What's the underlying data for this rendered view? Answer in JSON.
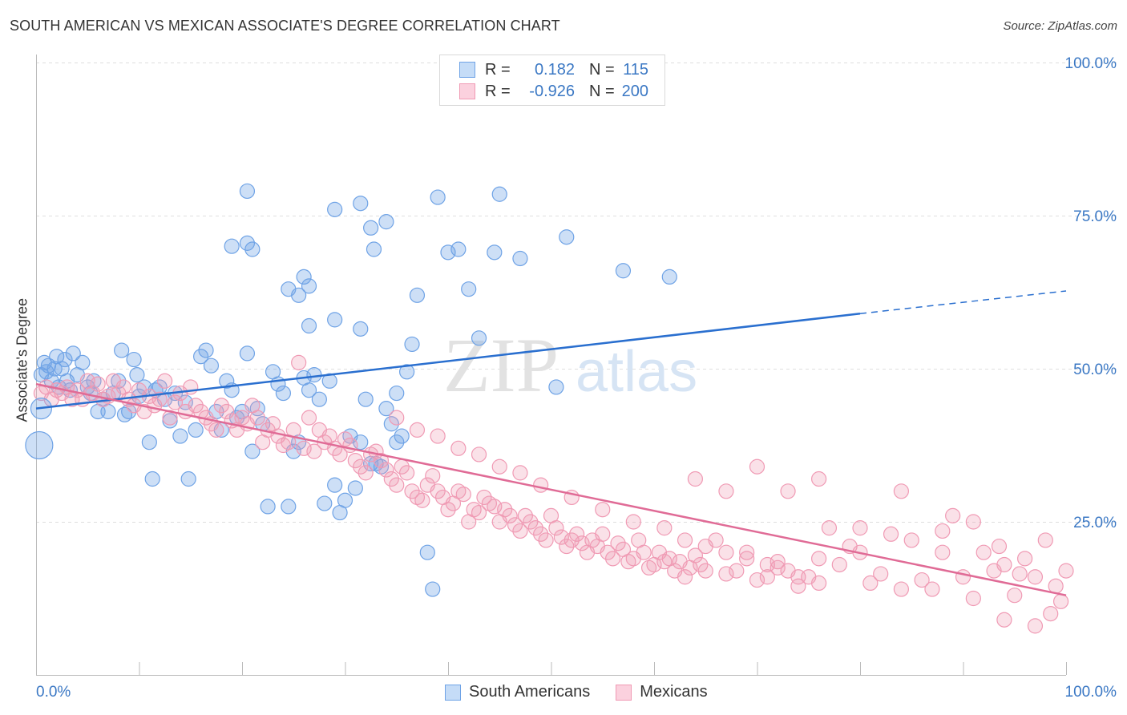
{
  "title": "SOUTH AMERICAN VS MEXICAN ASSOCIATE'S DEGREE CORRELATION CHART",
  "source": "Source: ZipAtlas.com",
  "watermark": {
    "zip": "ZIP",
    "atlas": "atlas"
  },
  "legend": {
    "rows": [
      {
        "r_label": "R =",
        "r_value": "0.182",
        "n_label": "N =",
        "n_value": "115",
        "color": "#6fa3e6"
      },
      {
        "r_label": "R =",
        "r_value": "-0.926",
        "n_label": "N =",
        "n_value": "200",
        "color": "#f09ab4"
      }
    ]
  },
  "bottom_legend": [
    {
      "label": "South Americans",
      "color": "#6fa3e6"
    },
    {
      "label": "Mexicans",
      "color": "#f09ab4"
    }
  ],
  "chart_data": {
    "type": "scatter",
    "title": "SOUTH AMERICAN VS MEXICAN ASSOCIATE'S DEGREE CORRELATION CHART",
    "xlabel": "",
    "ylabel": "Associate's Degree",
    "xlim": [
      0,
      100
    ],
    "ylim": [
      0,
      100
    ],
    "x_tick_labels": [
      "0.0%",
      "100.0%"
    ],
    "y_tick_labels": [
      "25.0%",
      "50.0%",
      "75.0%",
      "100.0%"
    ],
    "y_ticks": [
      25,
      50,
      75,
      100
    ],
    "grid": true,
    "series": [
      {
        "name": "South Americans",
        "color": "#6fa3e6",
        "line_color": "#2a6fcf",
        "trend": {
          "x0": 0,
          "y0": 43.5,
          "x1": 80,
          "y1": 59,
          "dash_to_x": 100,
          "dash_to_y": 62.7
        },
        "points": [
          [
            0.5,
            49
          ],
          [
            0.8,
            51
          ],
          [
            1,
            49.5
          ],
          [
            1.2,
            50.5
          ],
          [
            1.5,
            48
          ],
          [
            1.8,
            50
          ],
          [
            2,
            52
          ],
          [
            2.2,
            47
          ],
          [
            2.5,
            50
          ],
          [
            2.8,
            51.5
          ],
          [
            3,
            48
          ],
          [
            3.3,
            46.5
          ],
          [
            3.6,
            52.5
          ],
          [
            4,
            49
          ],
          [
            4.5,
            51
          ],
          [
            5,
            47
          ],
          [
            5.3,
            46
          ],
          [
            5.6,
            48
          ],
          [
            6,
            43
          ],
          [
            6.5,
            45
          ],
          [
            7,
            43
          ],
          [
            7.5,
            46
          ],
          [
            8,
            48
          ],
          [
            8.3,
            53
          ],
          [
            8.6,
            42.5
          ],
          [
            9,
            43
          ],
          [
            9.5,
            51.5
          ],
          [
            9.8,
            49
          ],
          [
            10,
            45.5
          ],
          [
            10.5,
            47
          ],
          [
            11,
            38
          ],
          [
            11.3,
            32
          ],
          [
            11.6,
            46.5
          ],
          [
            12,
            47
          ],
          [
            12.5,
            45
          ],
          [
            13,
            41.5
          ],
          [
            13.5,
            46
          ],
          [
            14,
            39
          ],
          [
            14.5,
            44.5
          ],
          [
            14.8,
            32
          ],
          [
            15.5,
            40
          ],
          [
            16,
            52
          ],
          [
            16.5,
            53
          ],
          [
            17,
            50.5
          ],
          [
            17.5,
            43
          ],
          [
            18,
            40
          ],
          [
            18.5,
            48
          ],
          [
            19,
            46.5
          ],
          [
            19.5,
            42
          ],
          [
            20,
            43
          ],
          [
            20.5,
            52.5
          ],
          [
            21,
            36.5
          ],
          [
            21.5,
            43.5
          ],
          [
            22,
            41
          ],
          [
            22.5,
            27.5
          ],
          [
            23,
            49.5
          ],
          [
            23.5,
            47.5
          ],
          [
            24,
            46
          ],
          [
            24.5,
            27.5
          ],
          [
            25,
            36.5
          ],
          [
            25.5,
            38
          ],
          [
            26,
            48.5
          ],
          [
            26.5,
            46.5
          ],
          [
            27,
            49
          ],
          [
            27.5,
            45
          ],
          [
            28,
            28
          ],
          [
            28.5,
            48
          ],
          [
            29,
            31
          ],
          [
            29.5,
            26.5
          ],
          [
            30,
            28.5
          ],
          [
            30.5,
            39
          ],
          [
            31,
            30.5
          ],
          [
            31.5,
            38
          ],
          [
            32,
            45
          ],
          [
            32.5,
            34.5
          ],
          [
            33,
            34.5
          ],
          [
            33.5,
            34
          ],
          [
            34,
            43.5
          ],
          [
            34.5,
            41
          ],
          [
            35,
            46
          ],
          [
            19,
            70
          ],
          [
            20.5,
            70.5
          ],
          [
            21,
            69.5
          ],
          [
            20.5,
            79
          ],
          [
            24.5,
            63
          ],
          [
            25.5,
            62
          ],
          [
            26,
            65
          ],
          [
            26.5,
            63.5
          ],
          [
            26.5,
            57
          ],
          [
            29,
            58
          ],
          [
            31.5,
            56.5
          ],
          [
            29,
            76
          ],
          [
            31.5,
            77
          ],
          [
            32.5,
            73
          ],
          [
            32.8,
            69.5
          ],
          [
            34,
            74
          ],
          [
            35,
            38
          ],
          [
            35.5,
            39
          ],
          [
            36,
            49.5
          ],
          [
            36.5,
            54
          ],
          [
            37,
            62
          ],
          [
            38,
            20
          ],
          [
            38.5,
            14
          ],
          [
            39,
            78
          ],
          [
            40,
            69
          ],
          [
            41,
            69.5
          ],
          [
            42,
            63
          ],
          [
            43,
            55
          ],
          [
            44.5,
            69
          ],
          [
            45,
            78.5
          ],
          [
            47,
            68
          ],
          [
            50.5,
            47
          ],
          [
            51.5,
            71.5
          ],
          [
            57,
            66
          ],
          [
            61.5,
            65
          ]
        ]
      },
      {
        "name": "Mexicans",
        "color": "#f09ab4",
        "line_color": "#e06b96",
        "trend": {
          "x0": 0,
          "y0": 47.5,
          "x1": 100,
          "y1": 13
        },
        "points": [
          [
            0.5,
            46
          ],
          [
            1,
            47
          ],
          [
            1.5,
            45
          ],
          [
            2,
            46.5
          ],
          [
            2.5,
            46
          ],
          [
            3,
            47
          ],
          [
            3.5,
            45
          ],
          [
            4,
            46.5
          ],
          [
            4.5,
            45
          ],
          [
            5,
            48
          ],
          [
            5.5,
            46
          ],
          [
            6,
            47.5
          ],
          [
            6.5,
            45
          ],
          [
            7,
            45.5
          ],
          [
            7.5,
            48
          ],
          [
            8,
            46
          ],
          [
            8.5,
            47
          ],
          [
            9,
            45
          ],
          [
            9.5,
            44
          ],
          [
            10,
            46.5
          ],
          [
            10.5,
            43
          ],
          [
            11,
            45.5
          ],
          [
            11.5,
            44
          ],
          [
            12,
            45
          ],
          [
            12.5,
            48
          ],
          [
            13,
            42
          ],
          [
            13.5,
            44.5
          ],
          [
            14,
            46
          ],
          [
            14.5,
            43
          ],
          [
            15,
            47
          ],
          [
            15.5,
            44
          ],
          [
            16,
            43
          ],
          [
            16.5,
            42
          ],
          [
            17,
            41
          ],
          [
            17.5,
            40
          ],
          [
            18,
            44
          ],
          [
            18.5,
            43
          ],
          [
            19,
            41.5
          ],
          [
            19.5,
            40
          ],
          [
            20,
            42
          ],
          [
            20.5,
            41
          ],
          [
            21,
            44
          ],
          [
            21.5,
            42
          ],
          [
            22,
            38
          ],
          [
            22.5,
            40
          ],
          [
            23,
            41
          ],
          [
            23.5,
            39
          ],
          [
            24,
            37.5
          ],
          [
            24.5,
            38
          ],
          [
            25,
            40
          ],
          [
            25.5,
            51
          ],
          [
            26,
            37
          ],
          [
            26.5,
            42
          ],
          [
            27,
            36.5
          ],
          [
            27.5,
            40
          ],
          [
            28,
            38
          ],
          [
            28.5,
            39
          ],
          [
            29,
            37
          ],
          [
            29.5,
            36
          ],
          [
            30,
            38.5
          ],
          [
            30.5,
            37.5
          ],
          [
            31,
            35
          ],
          [
            31.5,
            34
          ],
          [
            32,
            33
          ],
          [
            32.5,
            36
          ],
          [
            33,
            36.5
          ],
          [
            33.5,
            35
          ],
          [
            34,
            33.5
          ],
          [
            34.5,
            32
          ],
          [
            35,
            31
          ],
          [
            35.5,
            34
          ],
          [
            36,
            33
          ],
          [
            36.5,
            30
          ],
          [
            37,
            29
          ],
          [
            37.5,
            28.5
          ],
          [
            38,
            31
          ],
          [
            38.5,
            32.5
          ],
          [
            39,
            30
          ],
          [
            39.5,
            29
          ],
          [
            40,
            27
          ],
          [
            40.5,
            28
          ],
          [
            41,
            30
          ],
          [
            41.5,
            29.5
          ],
          [
            42,
            25
          ],
          [
            42.5,
            27
          ],
          [
            43,
            26.5
          ],
          [
            43.5,
            29
          ],
          [
            44,
            28
          ],
          [
            44.5,
            27.5
          ],
          [
            45,
            25
          ],
          [
            45.5,
            27
          ],
          [
            46,
            26
          ],
          [
            46.5,
            24.5
          ],
          [
            47,
            23.5
          ],
          [
            47.5,
            26
          ],
          [
            48,
            25
          ],
          [
            48.5,
            24
          ],
          [
            49,
            23
          ],
          [
            49.5,
            22
          ],
          [
            50,
            26
          ],
          [
            50.5,
            24
          ],
          [
            51,
            22.5
          ],
          [
            51.5,
            21
          ],
          [
            52,
            22
          ],
          [
            52.5,
            23
          ],
          [
            53,
            21.5
          ],
          [
            53.5,
            20
          ],
          [
            54,
            22
          ],
          [
            54.5,
            21
          ],
          [
            55,
            23
          ],
          [
            55.5,
            20
          ],
          [
            56,
            19
          ],
          [
            56.5,
            21.5
          ],
          [
            57,
            20.5
          ],
          [
            57.5,
            18.5
          ],
          [
            58,
            19
          ],
          [
            58.5,
            22
          ],
          [
            59,
            20
          ],
          [
            59.5,
            17.5
          ],
          [
            60,
            18
          ],
          [
            60.5,
            20
          ],
          [
            61,
            18.5
          ],
          [
            61.5,
            19
          ],
          [
            62,
            17
          ],
          [
            62.5,
            18.5
          ],
          [
            63,
            16
          ],
          [
            63.5,
            17.5
          ],
          [
            64,
            19.5
          ],
          [
            64.5,
            18
          ],
          [
            65,
            17
          ],
          [
            66,
            22
          ],
          [
            67,
            16.5
          ],
          [
            68,
            17
          ],
          [
            69,
            20
          ],
          [
            70,
            15.5
          ],
          [
            71,
            16
          ],
          [
            72,
            18.5
          ],
          [
            73,
            17
          ],
          [
            74,
            14.5
          ],
          [
            75,
            16
          ],
          [
            76,
            19
          ],
          [
            77,
            24
          ],
          [
            78,
            18
          ],
          [
            79,
            21
          ],
          [
            80,
            20
          ],
          [
            81,
            15
          ],
          [
            82,
            16.5
          ],
          [
            83,
            23
          ],
          [
            84,
            14
          ],
          [
            85,
            22
          ],
          [
            86,
            15.5
          ],
          [
            87,
            14
          ],
          [
            88,
            23.5
          ],
          [
            89,
            26
          ],
          [
            90,
            16
          ],
          [
            91,
            12.5
          ],
          [
            92,
            20
          ],
          [
            93,
            17
          ],
          [
            94,
            9
          ],
          [
            95,
            13
          ],
          [
            96,
            19
          ],
          [
            97,
            16
          ],
          [
            98,
            22
          ],
          [
            99,
            14.5
          ],
          [
            99.5,
            12
          ],
          [
            100,
            17
          ],
          [
            97,
            8
          ],
          [
            93.5,
            21
          ],
          [
            95.5,
            16.5
          ],
          [
            98.5,
            10
          ],
          [
            64,
            32
          ],
          [
            67,
            30
          ],
          [
            70,
            34
          ],
          [
            73,
            30
          ],
          [
            76,
            32
          ],
          [
            80,
            24
          ],
          [
            84,
            30
          ],
          [
            88,
            20
          ],
          [
            91,
            25
          ],
          [
            94,
            18
          ],
          [
            35,
            42
          ],
          [
            37,
            40
          ],
          [
            39,
            39
          ],
          [
            41,
            37
          ],
          [
            43,
            36
          ],
          [
            45,
            34
          ],
          [
            47,
            33
          ],
          [
            49,
            31
          ],
          [
            52,
            29
          ],
          [
            55,
            27
          ],
          [
            58,
            25
          ],
          [
            61,
            24
          ],
          [
            63,
            22
          ],
          [
            65,
            21
          ],
          [
            67,
            20
          ],
          [
            69,
            19
          ],
          [
            71,
            18
          ],
          [
            72,
            17.5
          ],
          [
            74,
            16
          ],
          [
            76,
            15
          ]
        ]
      }
    ]
  }
}
